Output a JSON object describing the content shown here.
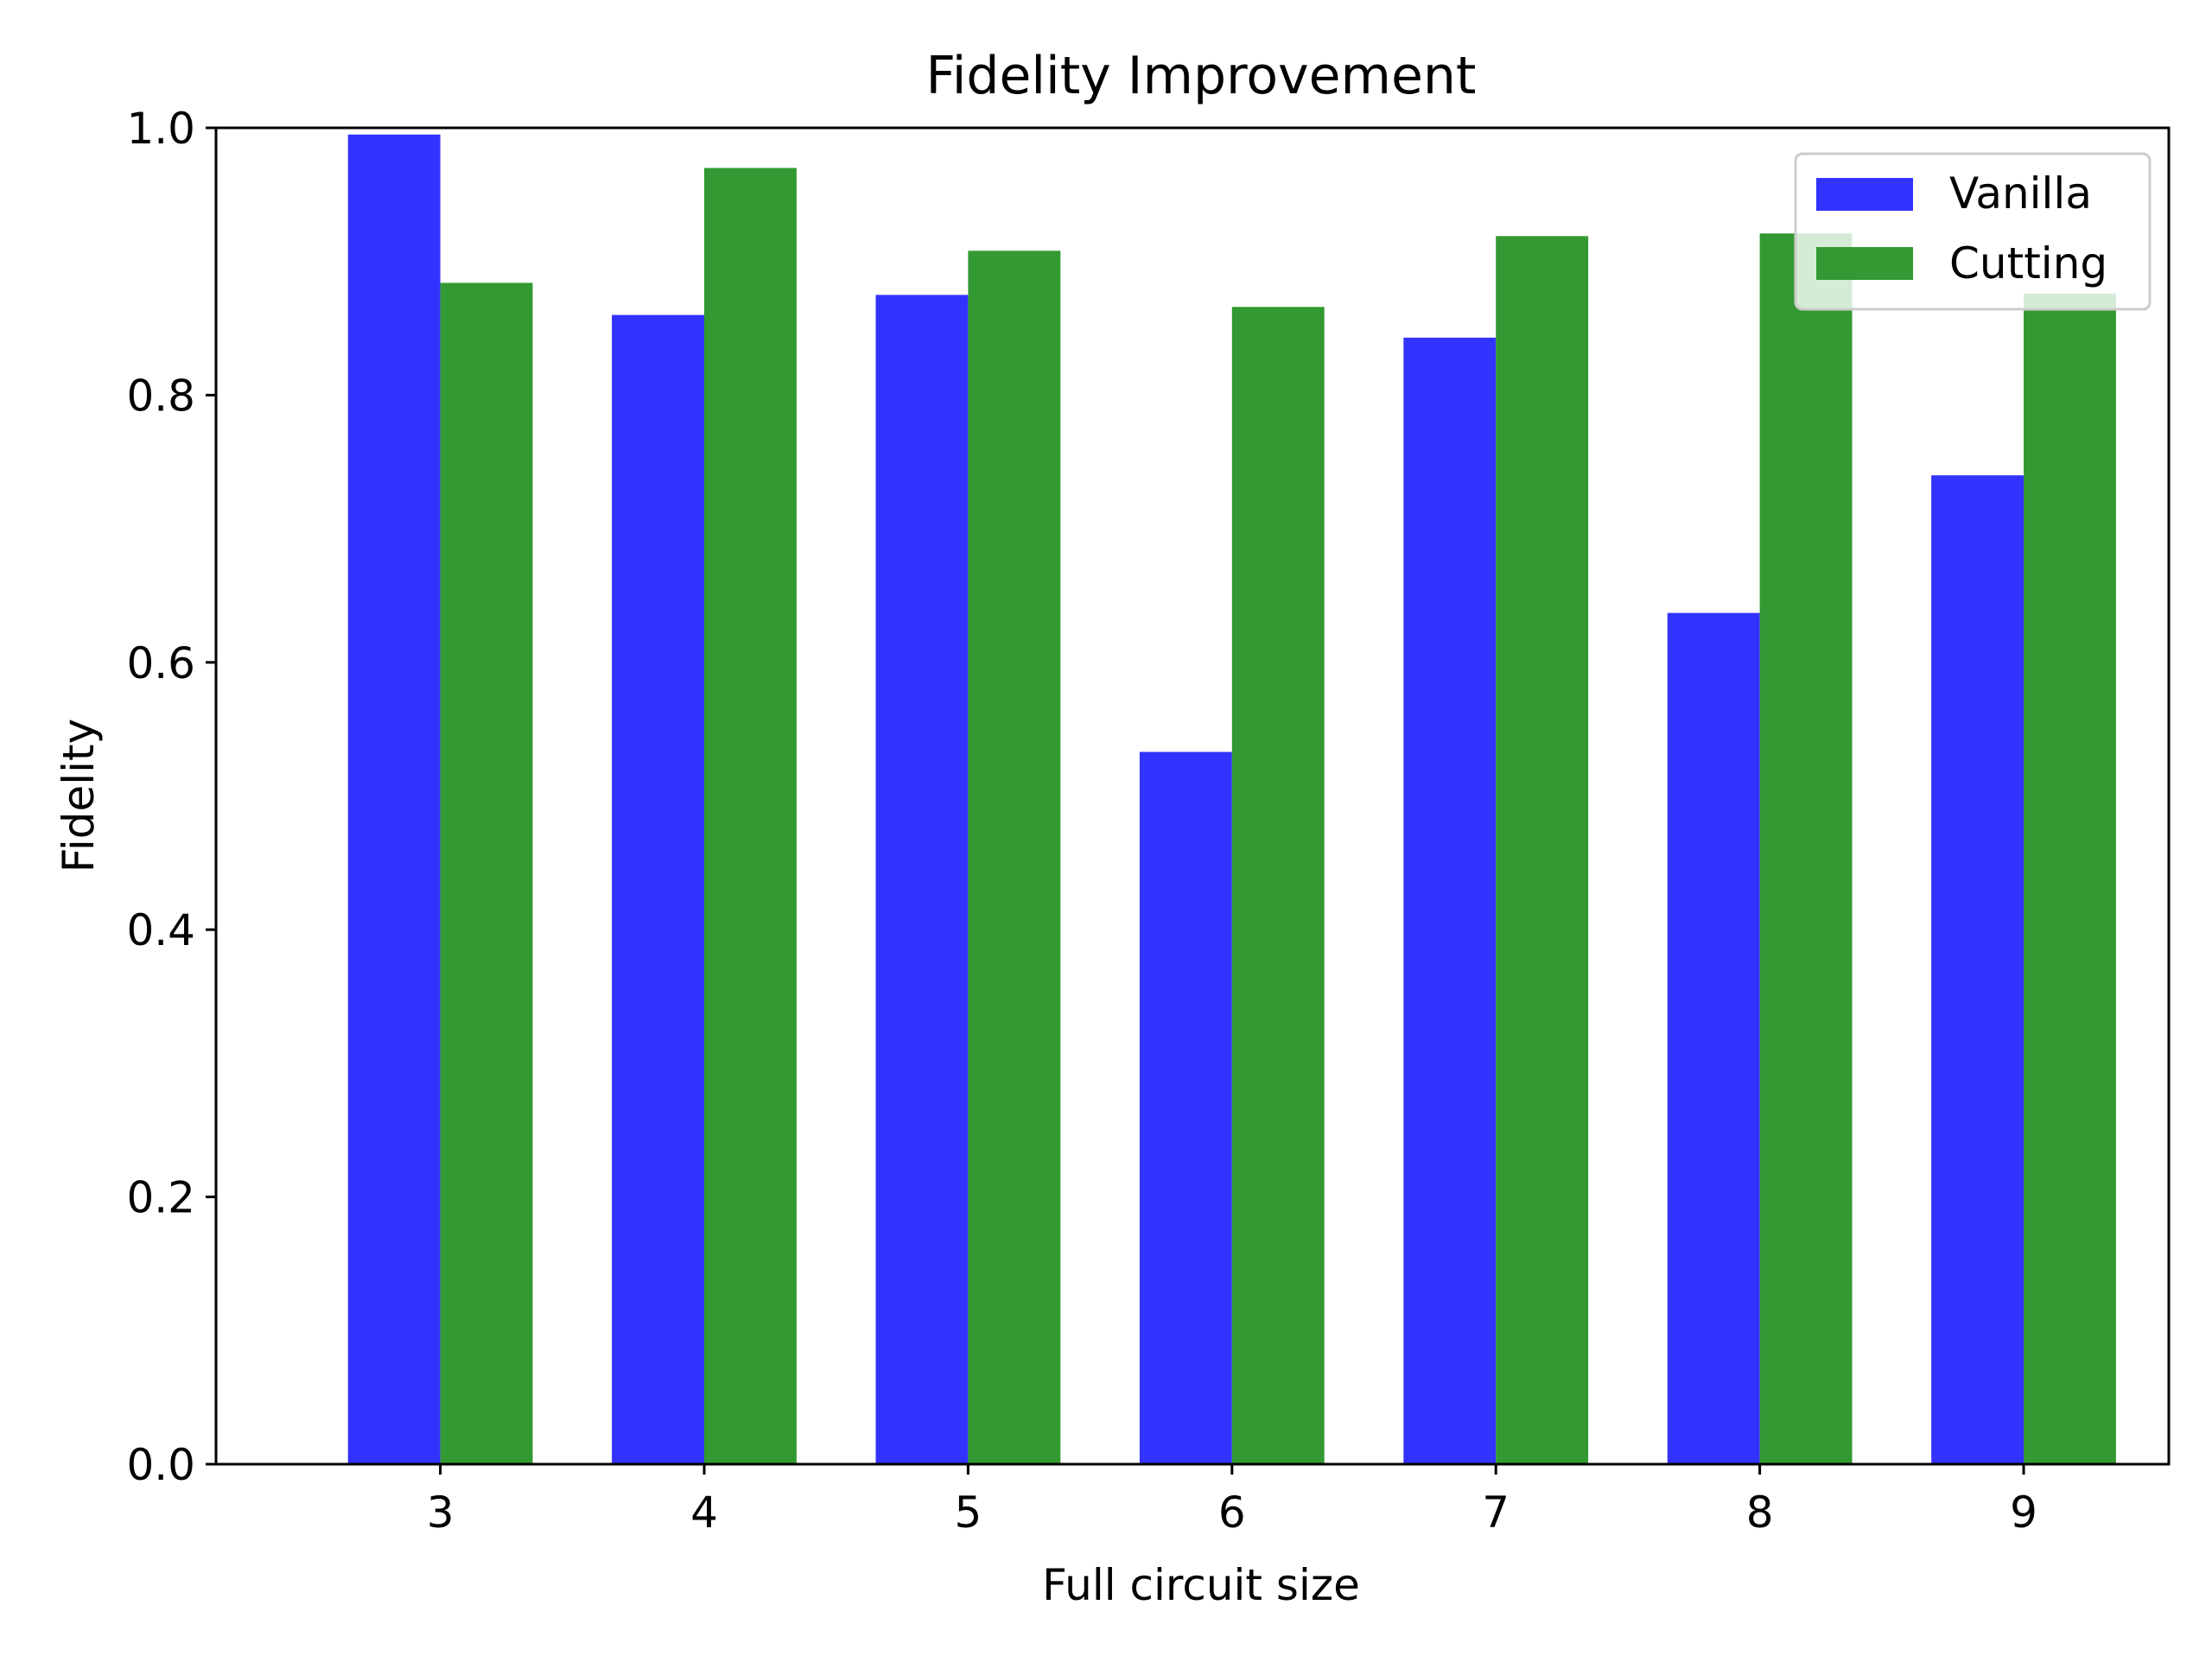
{
  "chart_data": {
    "type": "bar",
    "title": "Fidelity Improvement",
    "xlabel": "Full circuit size",
    "ylabel": "Fidelity",
    "categories": [
      "3",
      "4",
      "5",
      "6",
      "7",
      "8",
      "9"
    ],
    "series": [
      {
        "name": "Vanilla",
        "color": "#3333ff",
        "values": [
          0.995,
          0.86,
          0.875,
          0.533,
          0.843,
          0.637,
          0.74
        ]
      },
      {
        "name": "Cutting",
        "color": "#339933",
        "values": [
          0.884,
          0.97,
          0.908,
          0.866,
          0.919,
          0.921,
          0.876
        ]
      }
    ],
    "ylim": [
      0,
      1.0
    ],
    "yticks": [
      "0.0",
      "0.2",
      "0.4",
      "0.6",
      "0.8",
      "1.0"
    ],
    "grid": false,
    "legend_position": "top-right"
  }
}
